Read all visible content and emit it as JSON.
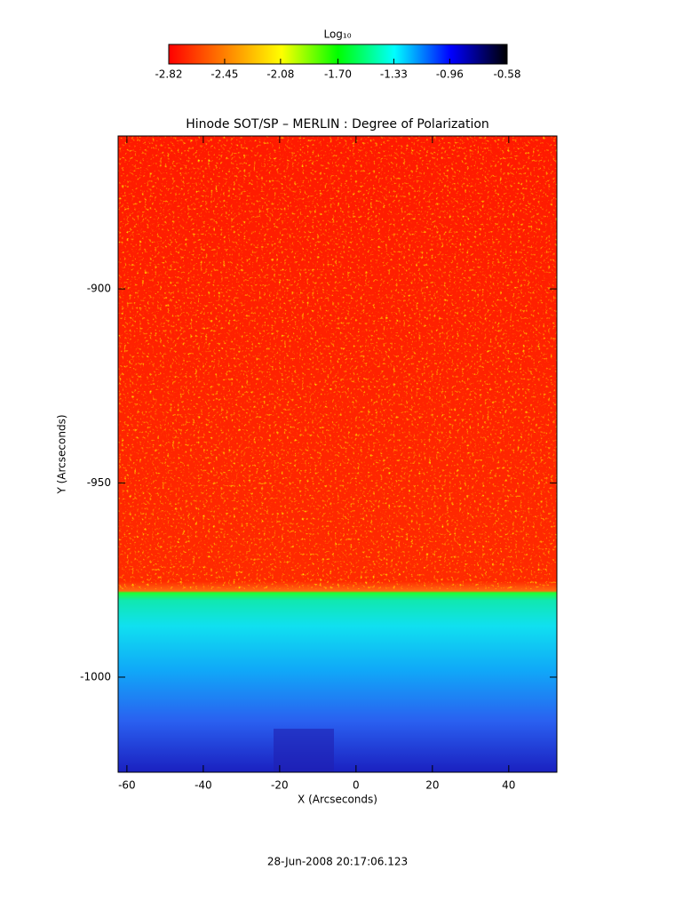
{
  "chart_data": {
    "type": "heatmap",
    "title": "Hinode SOT/SP – MERLIN : Degree of Polarization",
    "x_label": "X (Arcseconds)",
    "y_label": "Y (Arcseconds)",
    "xlim": [
      -62.3,
      52.6
    ],
    "xticks": [
      -60,
      -40,
      -20,
      0,
      20,
      40
    ],
    "ylim": [
      -1024.5,
      -860.6
    ],
    "yticks": [
      -900,
      -950,
      -1000
    ],
    "colorbar": {
      "label": "Log₁₀",
      "lim": [
        -2.82,
        -0.58
      ],
      "ticks": [
        -2.82,
        -2.45,
        -2.08,
        {
          "value": -1.7,
          "label": "-1.70"
        },
        -1.33,
        -0.96,
        -0.58
      ],
      "colormap": [
        "#ff0000",
        "#ff8000",
        "#ffff00",
        "#00ff00",
        "#00ffff",
        "#0000ff",
        "#000000"
      ]
    },
    "timestamp": "28-Jun-2008 20:17:06.123"
  }
}
